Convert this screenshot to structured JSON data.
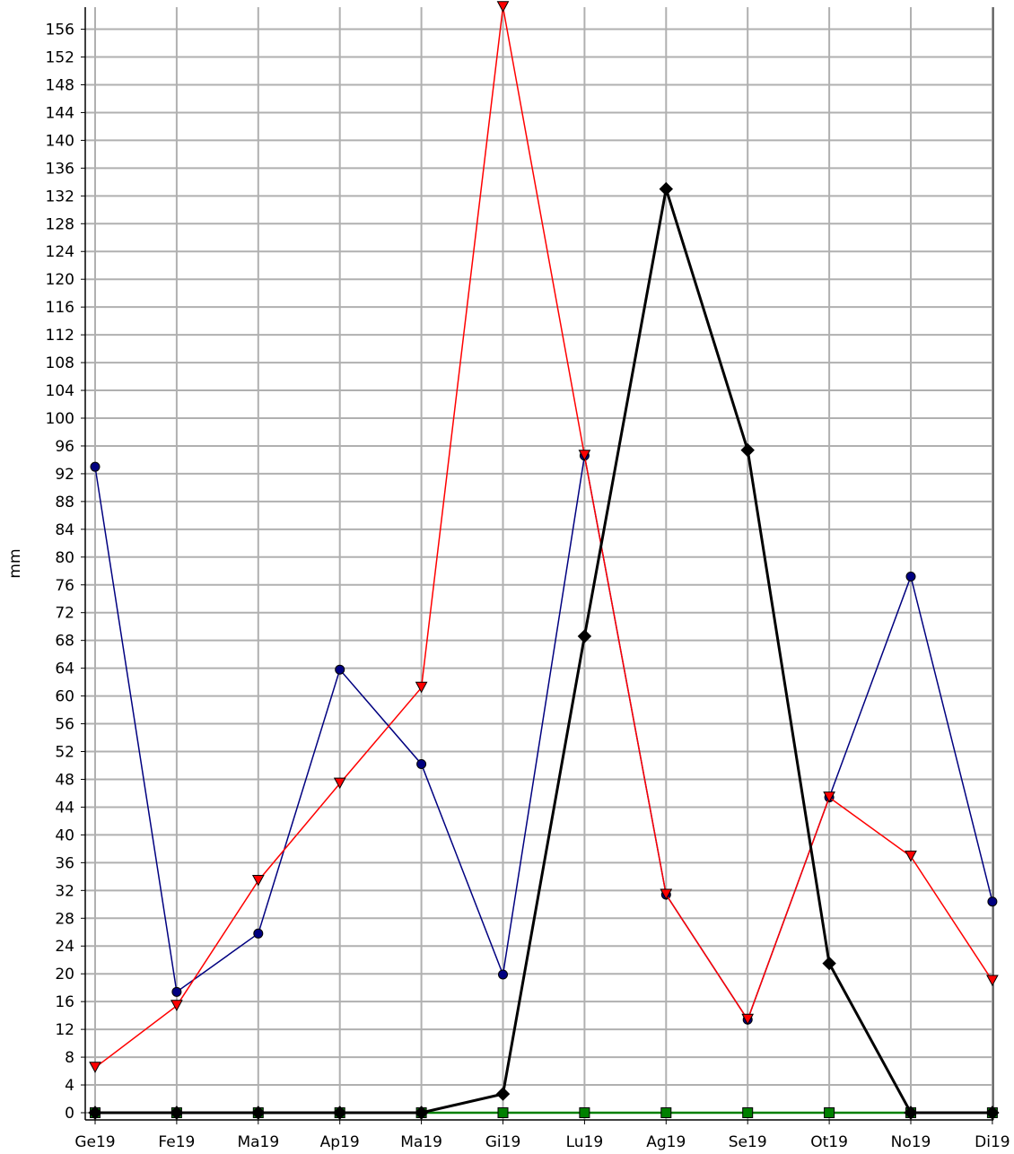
{
  "chart_data": {
    "type": "line",
    "title": "",
    "xlabel": "",
    "ylabel": "mm",
    "categories": [
      "Ge19",
      "Fe19",
      "Ma19",
      "Ap19",
      "Ma19",
      "Gi19",
      "Lu19",
      "Ag19",
      "Se19",
      "Ot19",
      "No19",
      "Di19"
    ],
    "ylim": [
      0,
      160
    ],
    "yticks": [
      0,
      4,
      8,
      12,
      16,
      20,
      24,
      28,
      32,
      36,
      40,
      44,
      48,
      52,
      56,
      60,
      64,
      68,
      72,
      76,
      80,
      84,
      88,
      92,
      96,
      100,
      104,
      108,
      112,
      116,
      120,
      124,
      128,
      132,
      136,
      140,
      144,
      148,
      152,
      156
    ],
    "grid": true,
    "legend": "none",
    "series": [
      {
        "color": "#000080",
        "marker": "circle",
        "line_width": 1.5,
        "values": [
          93.0,
          17.4,
          25.8,
          63.8,
          50.2,
          19.9,
          94.6,
          31.4,
          13.4,
          45.4,
          77.2,
          30.4
        ]
      },
      {
        "color": "#ff0000",
        "marker": "triangle-down",
        "line_width": 1.5,
        "values": [
          6.5,
          15.4,
          33.4,
          47.4,
          61.2,
          159.2,
          94.6,
          31.4,
          13.4,
          45.4,
          36.9,
          19.0
        ]
      },
      {
        "color": "#008000",
        "marker": "square",
        "line_width": 2.5,
        "values": [
          0,
          0,
          0,
          0,
          0,
          0,
          0,
          0,
          0,
          0,
          0,
          0
        ]
      },
      {
        "color": "#000000",
        "marker": "diamond",
        "line_width": 3,
        "values": [
          0,
          0,
          0,
          0,
          0,
          2.7,
          68.6,
          133.0,
          95.4,
          21.5,
          0,
          0
        ]
      }
    ]
  }
}
